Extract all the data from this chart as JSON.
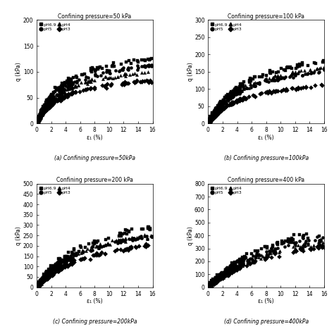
{
  "subplots": [
    {
      "title": "Confining pressure=50 kPa",
      "caption": "(a) Confining pressure=50kPa",
      "ylim": [
        0,
        200
      ],
      "yticks": [
        0,
        50,
        100,
        150,
        200
      ],
      "ylabel": "q (kPa)",
      "xlabel": "ε₁ (%)",
      "series": [
        {
          "label": "pH6.9",
          "marker": "s",
          "plateau": 155,
          "b": 0.025
        },
        {
          "label": "pH5",
          "marker": "o",
          "plateau": 140,
          "b": 0.028
        },
        {
          "label": "pH4",
          "marker": "^",
          "plateau": 122,
          "b": 0.03
        },
        {
          "label": "pH3",
          "marker": "D",
          "plateau": 100,
          "b": 0.035
        }
      ]
    },
    {
      "title": "Confining pressure=100 kPa",
      "caption": "(b) Confining pressure=100kPa",
      "ylim": [
        0,
        300
      ],
      "yticks": [
        0,
        50,
        100,
        150,
        200,
        250,
        300
      ],
      "ylabel": "q (kPa)",
      "xlabel": "ε₁ (%)",
      "series": [
        {
          "label": "pH6.9",
          "marker": "s",
          "plateau": 235,
          "b": 0.022
        },
        {
          "label": "pH5",
          "marker": "o",
          "plateau": 195,
          "b": 0.025
        },
        {
          "label": "pH4",
          "marker": "^",
          "plateau": 210,
          "b": 0.024
        },
        {
          "label": "pH3",
          "marker": "D",
          "plateau": 140,
          "b": 0.032
        }
      ]
    },
    {
      "title": "Confining pressure=200 kPa",
      "caption": "(c) Confining pressure=200kPa",
      "ylim": [
        0,
        500
      ],
      "yticks": [
        0,
        50,
        100,
        150,
        200,
        250,
        300,
        350,
        400,
        450,
        500
      ],
      "ylabel": "q (kPa)",
      "xlabel": "ε₁ (%)",
      "series": [
        {
          "label": "pH6.9",
          "marker": "s",
          "plateau": 425,
          "b": 0.018
        },
        {
          "label": "pH5",
          "marker": "o",
          "plateau": 360,
          "b": 0.02
        },
        {
          "label": "pH4",
          "marker": "^",
          "plateau": 375,
          "b": 0.02
        },
        {
          "label": "pH3",
          "marker": "D",
          "plateau": 295,
          "b": 0.025
        }
      ]
    },
    {
      "title": "Confining pressure=400 kPa",
      "caption": "(d) Confining pressure=400kPa",
      "ylim": [
        0,
        800
      ],
      "yticks": [
        0,
        100,
        200,
        300,
        400,
        500,
        600,
        700,
        800
      ],
      "ylabel": "q (kPa)",
      "xlabel": "ε₁ (%)",
      "series": [
        {
          "label": "pH6.9",
          "marker": "s",
          "plateau": 700,
          "b": 0.015
        },
        {
          "label": "pH5",
          "marker": "o",
          "plateau": 635,
          "b": 0.017
        },
        {
          "label": "pH4",
          "marker": "^",
          "plateau": 575,
          "b": 0.018
        },
        {
          "label": "pH3",
          "marker": "D",
          "plateau": 520,
          "b": 0.02
        }
      ]
    }
  ],
  "xlim": [
    0,
    16
  ],
  "xticks": [
    0,
    2,
    4,
    6,
    8,
    10,
    12,
    14,
    16
  ],
  "legend_labels": [
    "pH6.9",
    "pH5",
    "pH4",
    "pH3"
  ],
  "markers": [
    "s",
    "o",
    "^",
    "D"
  ],
  "color": "black",
  "markersize": 3,
  "background": "#ffffff"
}
